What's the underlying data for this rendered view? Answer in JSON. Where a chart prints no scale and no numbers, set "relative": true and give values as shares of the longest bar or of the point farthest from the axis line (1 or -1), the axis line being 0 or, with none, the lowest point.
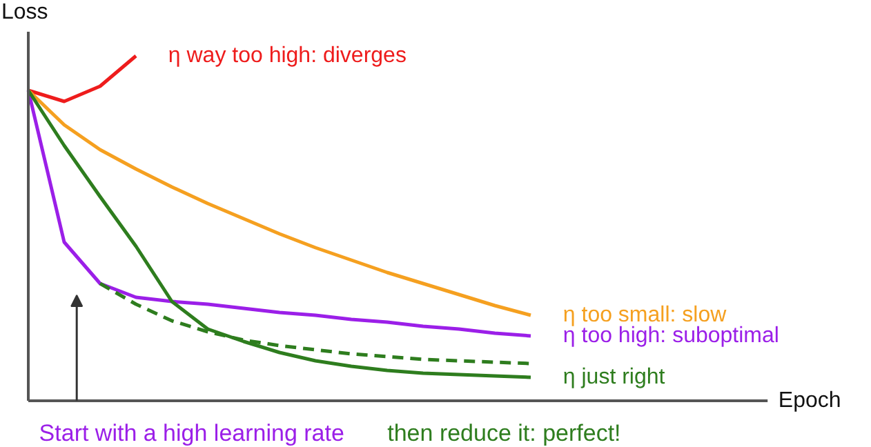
{
  "chart_data": {
    "type": "line",
    "relative": true,
    "xlabel": "Epoch",
    "ylabel": "Loss",
    "grid": false,
    "marker": "none",
    "categories": [
      null,
      null,
      null,
      null,
      null,
      null,
      null,
      null,
      null,
      null,
      null,
      null,
      null,
      null,
      null,
      null,
      null,
      null,
      null,
      null,
      null
    ],
    "series": [
      {
        "name": "η way too high: diverges",
        "color": "#ee1c1c",
        "values": [
          0.9,
          0.868,
          0.912,
          1.0,
          null,
          null,
          null,
          null,
          null,
          null,
          null,
          null,
          null,
          null,
          null,
          null,
          null,
          null,
          null,
          null,
          null
        ]
      },
      {
        "name": "η too small: slow",
        "color": "#f5a020",
        "values": [
          0.9,
          0.8,
          0.728,
          0.672,
          0.62,
          0.572,
          0.528,
          0.484,
          0.444,
          0.408,
          0.372,
          0.34,
          0.308,
          0.276,
          0.248,
          null,
          null,
          null,
          null,
          null,
          null
        ]
      },
      {
        "name": "η too high: suboptimal",
        "color": "#9b1fe8",
        "values": [
          0.9,
          0.46,
          0.34,
          0.3,
          0.288,
          0.28,
          0.268,
          0.256,
          0.248,
          0.236,
          0.228,
          0.216,
          0.208,
          0.196,
          0.188,
          null,
          null,
          null,
          null,
          null,
          null
        ]
      },
      {
        "name": "η just right",
        "color": "#2e7d1e",
        "values": [
          0.9,
          0.74,
          0.592,
          0.448,
          0.288,
          0.208,
          0.172,
          0.14,
          0.116,
          0.1,
          0.088,
          0.08,
          0.076,
          0.072,
          0.068,
          null,
          null,
          null,
          null,
          null,
          null
        ]
      },
      {
        "color": "#2e7d1e",
        "line_style": "dashed",
        "values": [
          null,
          null,
          0.34,
          0.28,
          0.232,
          0.2,
          0.176,
          0.16,
          0.148,
          0.136,
          0.128,
          0.12,
          0.116,
          0.112,
          0.108,
          null,
          null,
          null,
          null,
          null,
          null
        ]
      }
    ],
    "annotations": [
      "Start with a high learning rate",
      "then reduce it: perfect!"
    ]
  }
}
